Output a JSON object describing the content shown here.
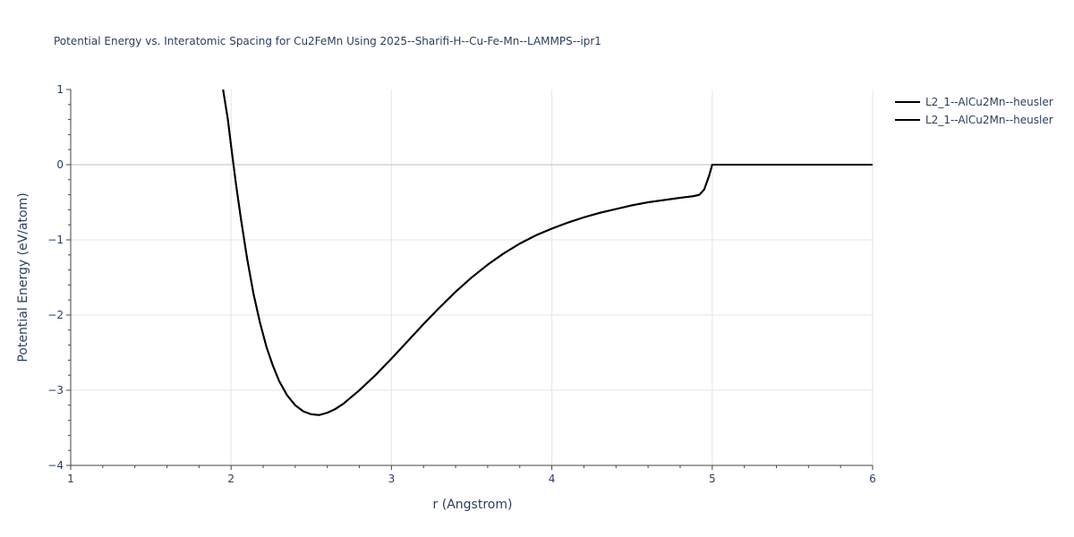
{
  "chart_data": {
    "type": "line",
    "title": "Potential Energy vs. Interatomic Spacing for Cu2FeMn Using 2025--Sharifi-H--Cu-Fe-Mn--LAMMPS--ipr1",
    "xlabel": "r (Angstrom)",
    "ylabel": "Potential Energy (eV/atom)",
    "xlim": [
      1,
      6
    ],
    "ylim": [
      -4,
      1
    ],
    "x_ticks": [
      "1",
      "2",
      "3",
      "4",
      "5",
      "6"
    ],
    "y_ticks": [
      "1",
      "0",
      "−1",
      "−2",
      "−3",
      "−4"
    ],
    "grid": true,
    "legend_position": "top-right",
    "series": [
      {
        "name": "L2_1--AlCu2Mn--heusler",
        "color": "#000000",
        "x": [
          1.95,
          1.98,
          2.0,
          2.03,
          2.06,
          2.1,
          2.14,
          2.18,
          2.22,
          2.26,
          2.3,
          2.35,
          2.4,
          2.45,
          2.5,
          2.55,
          2.6,
          2.65,
          2.7,
          2.8,
          2.9,
          3.0,
          3.1,
          3.2,
          3.3,
          3.4,
          3.5,
          3.6,
          3.7,
          3.8,
          3.9,
          4.0,
          4.1,
          4.2,
          4.3,
          4.4,
          4.5,
          4.6,
          4.7,
          4.8,
          4.88,
          4.92,
          4.95,
          4.98,
          5.0,
          5.1,
          5.5,
          6.0
        ],
        "y": [
          1.0,
          0.6,
          0.25,
          -0.25,
          -0.7,
          -1.25,
          -1.72,
          -2.1,
          -2.42,
          -2.67,
          -2.88,
          -3.07,
          -3.2,
          -3.28,
          -3.32,
          -3.33,
          -3.3,
          -3.25,
          -3.18,
          -3.0,
          -2.8,
          -2.58,
          -2.35,
          -2.12,
          -1.9,
          -1.69,
          -1.5,
          -1.33,
          -1.18,
          -1.05,
          -0.94,
          -0.85,
          -0.77,
          -0.7,
          -0.64,
          -0.59,
          -0.54,
          -0.5,
          -0.47,
          -0.44,
          -0.42,
          -0.4,
          -0.33,
          -0.15,
          0.0,
          0.0,
          0.0,
          0.0
        ]
      },
      {
        "name": "L2_1--AlCu2Mn--heusler",
        "color": "#000000",
        "x": [
          1.95,
          1.98,
          2.0,
          2.03,
          2.06,
          2.1,
          2.14,
          2.18,
          2.22,
          2.26,
          2.3,
          2.35,
          2.4,
          2.45,
          2.5,
          2.55,
          2.6,
          2.65,
          2.7,
          2.8,
          2.9,
          3.0,
          3.1,
          3.2,
          3.3,
          3.4,
          3.5,
          3.6,
          3.7,
          3.8,
          3.9,
          4.0,
          4.1,
          4.2,
          4.3,
          4.4,
          4.5,
          4.6,
          4.7,
          4.8,
          4.88,
          4.92,
          4.95,
          4.98,
          5.0,
          5.1,
          5.5,
          6.0
        ],
        "y": [
          1.0,
          0.6,
          0.25,
          -0.25,
          -0.7,
          -1.25,
          -1.72,
          -2.1,
          -2.42,
          -2.67,
          -2.88,
          -3.07,
          -3.2,
          -3.28,
          -3.32,
          -3.33,
          -3.3,
          -3.25,
          -3.18,
          -3.0,
          -2.8,
          -2.58,
          -2.35,
          -2.12,
          -1.9,
          -1.69,
          -1.5,
          -1.33,
          -1.18,
          -1.05,
          -0.94,
          -0.85,
          -0.77,
          -0.7,
          -0.64,
          -0.59,
          -0.54,
          -0.5,
          -0.47,
          -0.44,
          -0.42,
          -0.4,
          -0.33,
          -0.15,
          0.0,
          0.0,
          0.0,
          0.0
        ]
      }
    ]
  }
}
